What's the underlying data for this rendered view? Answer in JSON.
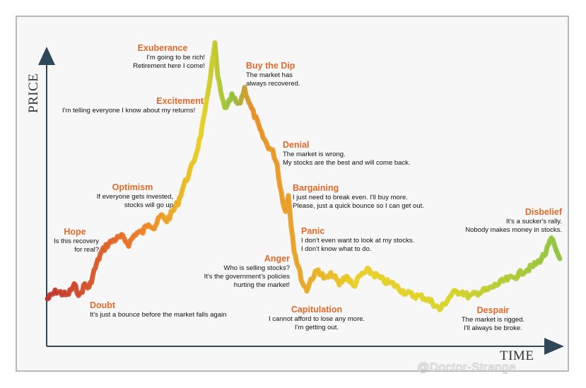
{
  "axes": {
    "y_label": "PRICE",
    "x_label": "TIME"
  },
  "phases": [
    {
      "id": "exuberance",
      "name": "Exuberance",
      "note": "I'm going to be rich!\nRetirement here I come!"
    },
    {
      "id": "buy-the-dip",
      "name": "Buy the Dip",
      "note": "The market has\nalways recovered."
    },
    {
      "id": "excitement",
      "name": "Excitement",
      "note": "I'm telling everyone I know about my returns!"
    },
    {
      "id": "denial",
      "name": "Denial",
      "note": "The market is wrong.\nMy stocks are the best and will come back."
    },
    {
      "id": "optimism",
      "name": "Optimism",
      "note": "If everyone gets invested,\nstocks will go up"
    },
    {
      "id": "bargaining",
      "name": "Bargaining",
      "note": "I just need to break even. I'll buy more.\nPlease, just a quick bounce so I can get out."
    },
    {
      "id": "disbelief",
      "name": "Disbelief",
      "note": "It's a sucker's rally.\nNobody makes money in stocks."
    },
    {
      "id": "hope",
      "name": "Hope",
      "note": "Is this recovery\nfor real?"
    },
    {
      "id": "panic",
      "name": "Panic",
      "note": "I don't even want to look at my stocks.\nI don't know what to do."
    },
    {
      "id": "anger",
      "name": "Anger",
      "note": "Who is selling stocks?\nIt's the government's policies\nhurting the market!"
    },
    {
      "id": "doubt",
      "name": "Doubt",
      "note": "It's just a bounce before the market falls again"
    },
    {
      "id": "capitulation",
      "name": "Capitulation",
      "note": "I cannot afford to lose any more.\nI'm getting out."
    },
    {
      "id": "despair",
      "name": "Despair",
      "note": "The market is rigged.\nI'll always be broke."
    }
  ],
  "watermark": "@Doctor-Strange",
  "colors": {
    "axis": "#2f4858",
    "phase_name": "#e06a2b",
    "frame": "#b9b9b9"
  }
}
